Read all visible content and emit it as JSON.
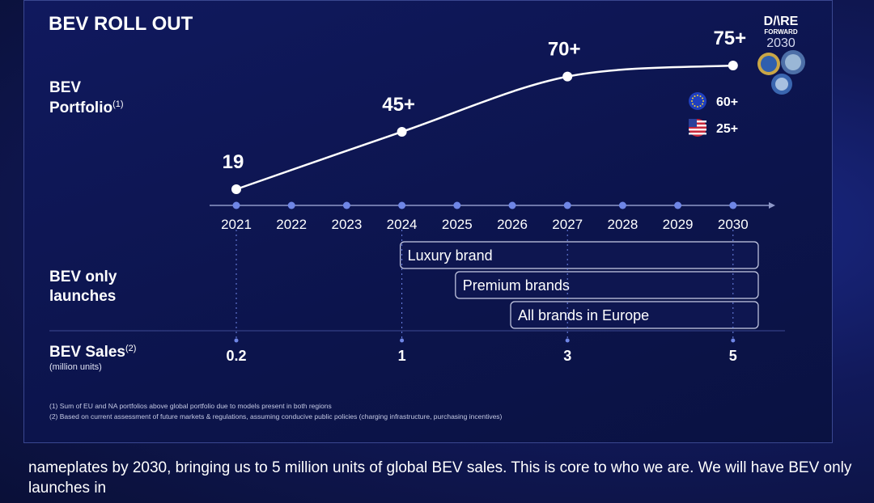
{
  "slide": {
    "title": "BEV ROLL OUT",
    "logo": {
      "line1": "D/\\RE",
      "line2": "FORWARD",
      "line3": "2030"
    }
  },
  "chart_data": {
    "type": "line",
    "row_label": "BEV",
    "row_label_2": "Portfolio",
    "row_label_sup": "(1)",
    "x": [
      "2021",
      "2022",
      "2023",
      "2024",
      "2025",
      "2026",
      "2027",
      "2028",
      "2029",
      "2030"
    ],
    "points": [
      {
        "year": "2021",
        "value": 19,
        "label": "19"
      },
      {
        "year": "2024",
        "value": 45,
        "label": "45+"
      },
      {
        "year": "2027",
        "value": 70,
        "label": "70+"
      },
      {
        "year": "2030",
        "value": 75,
        "label": "75+"
      }
    ],
    "regional": [
      {
        "region": "EU",
        "icon": "eu-flag-icon",
        "label": "60+",
        "color": "#1f3fbf"
      },
      {
        "region": "US",
        "icon": "us-flag-icon",
        "label": "25+",
        "color": "#c8283c"
      }
    ]
  },
  "launches": {
    "label_1": "BEV only",
    "label_2": "launches",
    "bars": [
      {
        "label": "Luxury brand",
        "start": "2024",
        "end": "2030"
      },
      {
        "label": "Premium brands",
        "start": "2025",
        "end": "2030"
      },
      {
        "label": "All brands in Europe",
        "start": "2026",
        "end": "2030"
      }
    ]
  },
  "sales": {
    "label": "BEV Sales",
    "label_sup": "(2)",
    "unit": "(million units)",
    "values": [
      {
        "year": "2021",
        "label": "0.2"
      },
      {
        "year": "2024",
        "label": "1"
      },
      {
        "year": "2027",
        "label": "3"
      },
      {
        "year": "2030",
        "label": "5"
      }
    ]
  },
  "footnotes": [
    "(1) Sum of EU and NA portfolios above global portfolio due to models present in both regions",
    "(2) Based on current assessment of future markets & regulations, assuming conducive public policies (charging infrastructure, purchasing incentives)"
  ],
  "caption": "nameplates by 2030, bringing us to 5 million units of global BEV sales. This is core to who we are. We will have BEV only launches in"
}
